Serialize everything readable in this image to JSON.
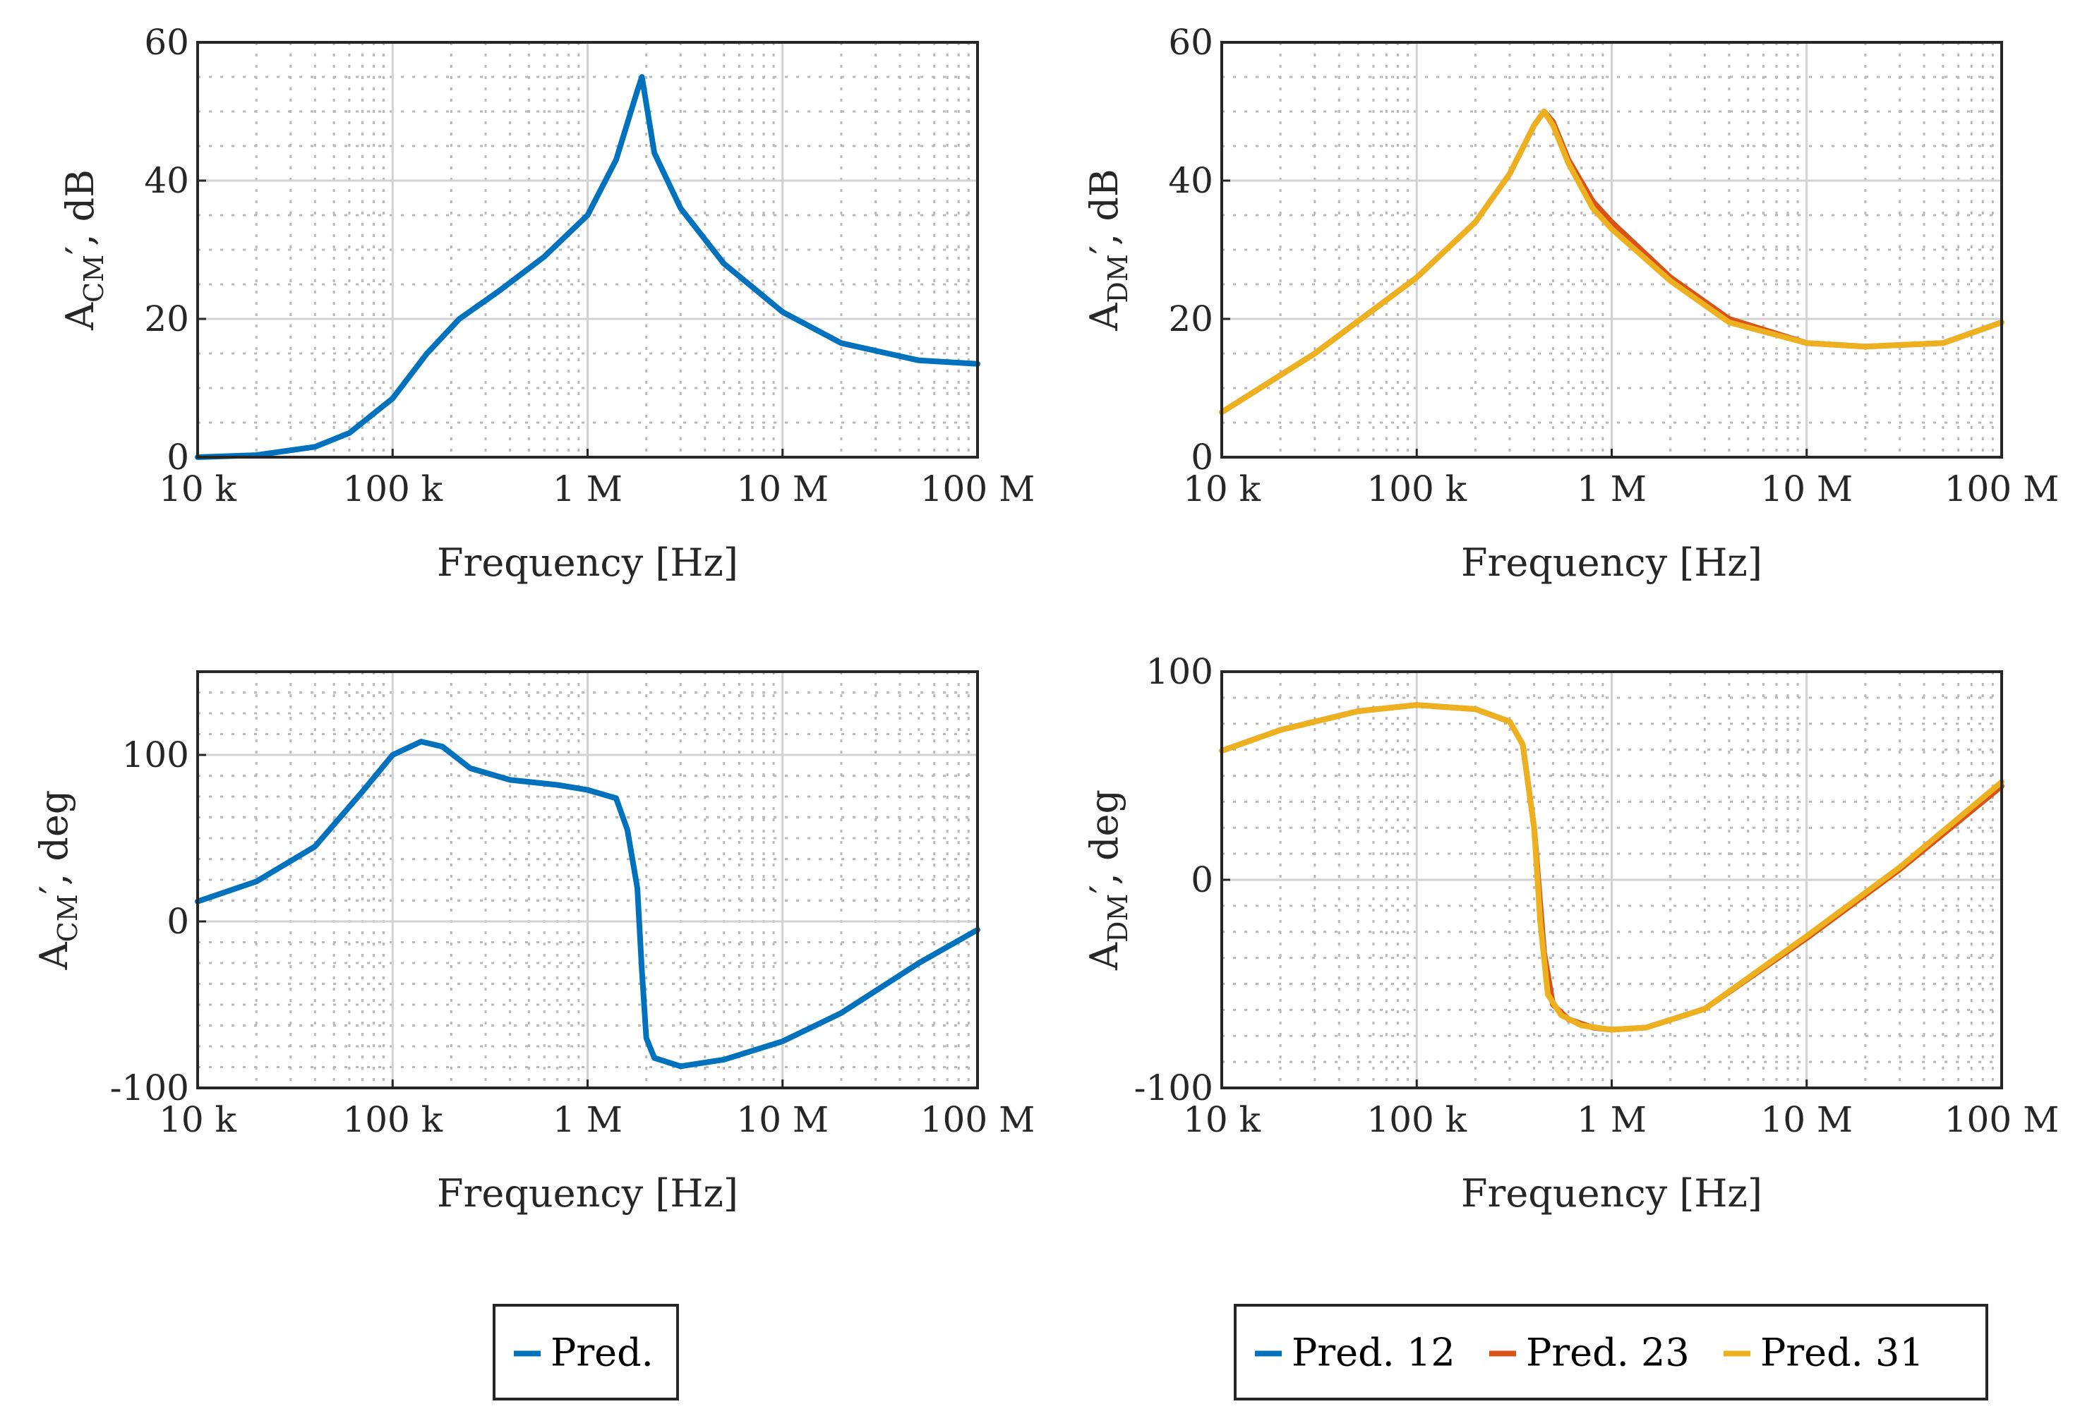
{
  "chart_data": [
    {
      "type": "line",
      "x_scale": "log",
      "xlim": [
        10000,
        100000000
      ],
      "ylim": [
        0,
        60
      ],
      "xticks": [
        10000,
        100000,
        1000000,
        10000000,
        100000000
      ],
      "xtick_labels": [
        "10 k",
        "100 k",
        "1 M",
        "10 M",
        "100 M"
      ],
      "yticks": [
        0,
        20,
        40,
        60
      ],
      "ytick_labels": [
        "0",
        "20",
        "40",
        "60"
      ],
      "xlabel": "Frequency [Hz]",
      "ylabel": {
        "main": "A",
        "sub": "CM",
        "suffix": "′, dB"
      },
      "series": [
        {
          "name": "Pred.",
          "color": "#0072bd",
          "x": [
            10000,
            20000,
            40000,
            60000,
            100000,
            150000,
            220000,
            350000,
            600000,
            1000000,
            1400000,
            1800000,
            1900000,
            2200000,
            3000000,
            5000000,
            10000000,
            20000000,
            50000000,
            100000000
          ],
          "y": [
            0,
            0.3,
            1.5,
            3.5,
            8.5,
            15,
            20,
            24,
            29,
            35,
            43,
            53,
            55,
            44,
            36,
            28,
            21,
            16.5,
            14,
            13.5
          ]
        }
      ]
    },
    {
      "type": "line",
      "x_scale": "log",
      "xlim": [
        10000,
        100000000
      ],
      "ylim": [
        0,
        60
      ],
      "xticks": [
        10000,
        100000,
        1000000,
        10000000,
        100000000
      ],
      "xtick_labels": [
        "10 k",
        "100 k",
        "1 M",
        "10 M",
        "100 M"
      ],
      "yticks": [
        0,
        20,
        40,
        60
      ],
      "ytick_labels": [
        "0",
        "20",
        "40",
        "60"
      ],
      "xlabel": "Frequency [Hz]",
      "ylabel": {
        "main": "A",
        "sub": "DM",
        "suffix": "′, dB"
      },
      "series": [
        {
          "name": "Pred. 23",
          "color": "#d95319",
          "x": [
            10000,
            30000,
            100000,
            200000,
            300000,
            400000,
            450000,
            500000,
            600000,
            800000,
            1000000,
            2000000,
            4000000,
            10000000,
            20000000,
            50000000,
            100000000
          ],
          "y": [
            6.5,
            15,
            26,
            34,
            41,
            48,
            50,
            48.5,
            43,
            37,
            34,
            26,
            20,
            16.5,
            16,
            16.5,
            19.5
          ]
        },
        {
          "name": "Pred. 31",
          "color": "#edb120",
          "x": [
            10000,
            30000,
            100000,
            200000,
            300000,
            400000,
            450000,
            500000,
            600000,
            800000,
            1000000,
            2000000,
            4000000,
            10000000,
            20000000,
            50000000,
            100000000
          ],
          "y": [
            6.5,
            15,
            26,
            34,
            41,
            48,
            50,
            48,
            42.5,
            36,
            33,
            25.5,
            19.5,
            16.5,
            16,
            16.5,
            19.5
          ]
        }
      ]
    },
    {
      "type": "line",
      "x_scale": "log",
      "xlim": [
        10000,
        100000000
      ],
      "ylim": [
        -100,
        150
      ],
      "xticks": [
        10000,
        100000,
        1000000,
        10000000,
        100000000
      ],
      "xtick_labels": [
        "10 k",
        "100 k",
        "1 M",
        "10 M",
        "100 M"
      ],
      "yticks": [
        -100,
        0,
        100
      ],
      "ytick_labels": [
        "-100",
        "0",
        "100"
      ],
      "xlabel": "Frequency [Hz]",
      "ylabel": {
        "main": "A",
        "sub": "CM",
        "suffix": "′, deg"
      },
      "series": [
        {
          "name": "Pred.",
          "color": "#0072bd",
          "x": [
            10000,
            20000,
            40000,
            70000,
            100000,
            140000,
            180000,
            250000,
            400000,
            700000,
            1000000,
            1400000,
            1600000,
            1800000,
            1900000,
            2000000,
            2200000,
            3000000,
            5000000,
            10000000,
            20000000,
            50000000,
            100000000
          ],
          "y": [
            12,
            24,
            45,
            78,
            100,
            108,
            105,
            92,
            85,
            82,
            79,
            74,
            55,
            20,
            -30,
            -70,
            -82,
            -87,
            -83,
            -72,
            -55,
            -25,
            -5
          ]
        }
      ]
    },
    {
      "type": "line",
      "x_scale": "log",
      "xlim": [
        10000,
        100000000
      ],
      "ylim": [
        -100,
        100
      ],
      "xticks": [
        10000,
        100000,
        1000000,
        10000000,
        100000000
      ],
      "xtick_labels": [
        "10 k",
        "100 k",
        "1 M",
        "10 M",
        "100 M"
      ],
      "yticks": [
        -100,
        0,
        100
      ],
      "ytick_labels": [
        "-100",
        "0",
        "100"
      ],
      "xlabel": "Frequency [Hz]",
      "ylabel": {
        "main": "A",
        "sub": "DM",
        "suffix": "′, deg"
      },
      "series": [
        {
          "name": "Pred. 23",
          "color": "#d95319",
          "x": [
            10000,
            20000,
            50000,
            100000,
            200000,
            300000,
            350000,
            400000,
            450000,
            500000,
            600000,
            800000,
            1000000,
            1500000,
            3000000,
            10000000,
            30000000,
            100000000
          ],
          "y": [
            62,
            72,
            81,
            84,
            82,
            76,
            65,
            25,
            -35,
            -60,
            -67,
            -71,
            -72,
            -71,
            -62,
            -28,
            5,
            45
          ]
        },
        {
          "name": "Pred. 31",
          "color": "#edb120",
          "x": [
            10000,
            20000,
            50000,
            100000,
            200000,
            300000,
            350000,
            400000,
            430000,
            470000,
            550000,
            700000,
            1000000,
            1500000,
            3000000,
            10000000,
            30000000,
            100000000
          ],
          "y": [
            62,
            72,
            81,
            84,
            82,
            76,
            65,
            25,
            -20,
            -55,
            -65,
            -70,
            -72,
            -71,
            -62,
            -27,
            6,
            47
          ]
        }
      ]
    }
  ],
  "legends": {
    "left": [
      {
        "label": "Pred.",
        "color": "#0072bd"
      }
    ],
    "right": [
      {
        "label": "Pred. 12",
        "color": "#0072bd"
      },
      {
        "label": "Pred. 23",
        "color": "#d95319"
      },
      {
        "label": "Pred. 31",
        "color": "#edb120"
      }
    ]
  }
}
